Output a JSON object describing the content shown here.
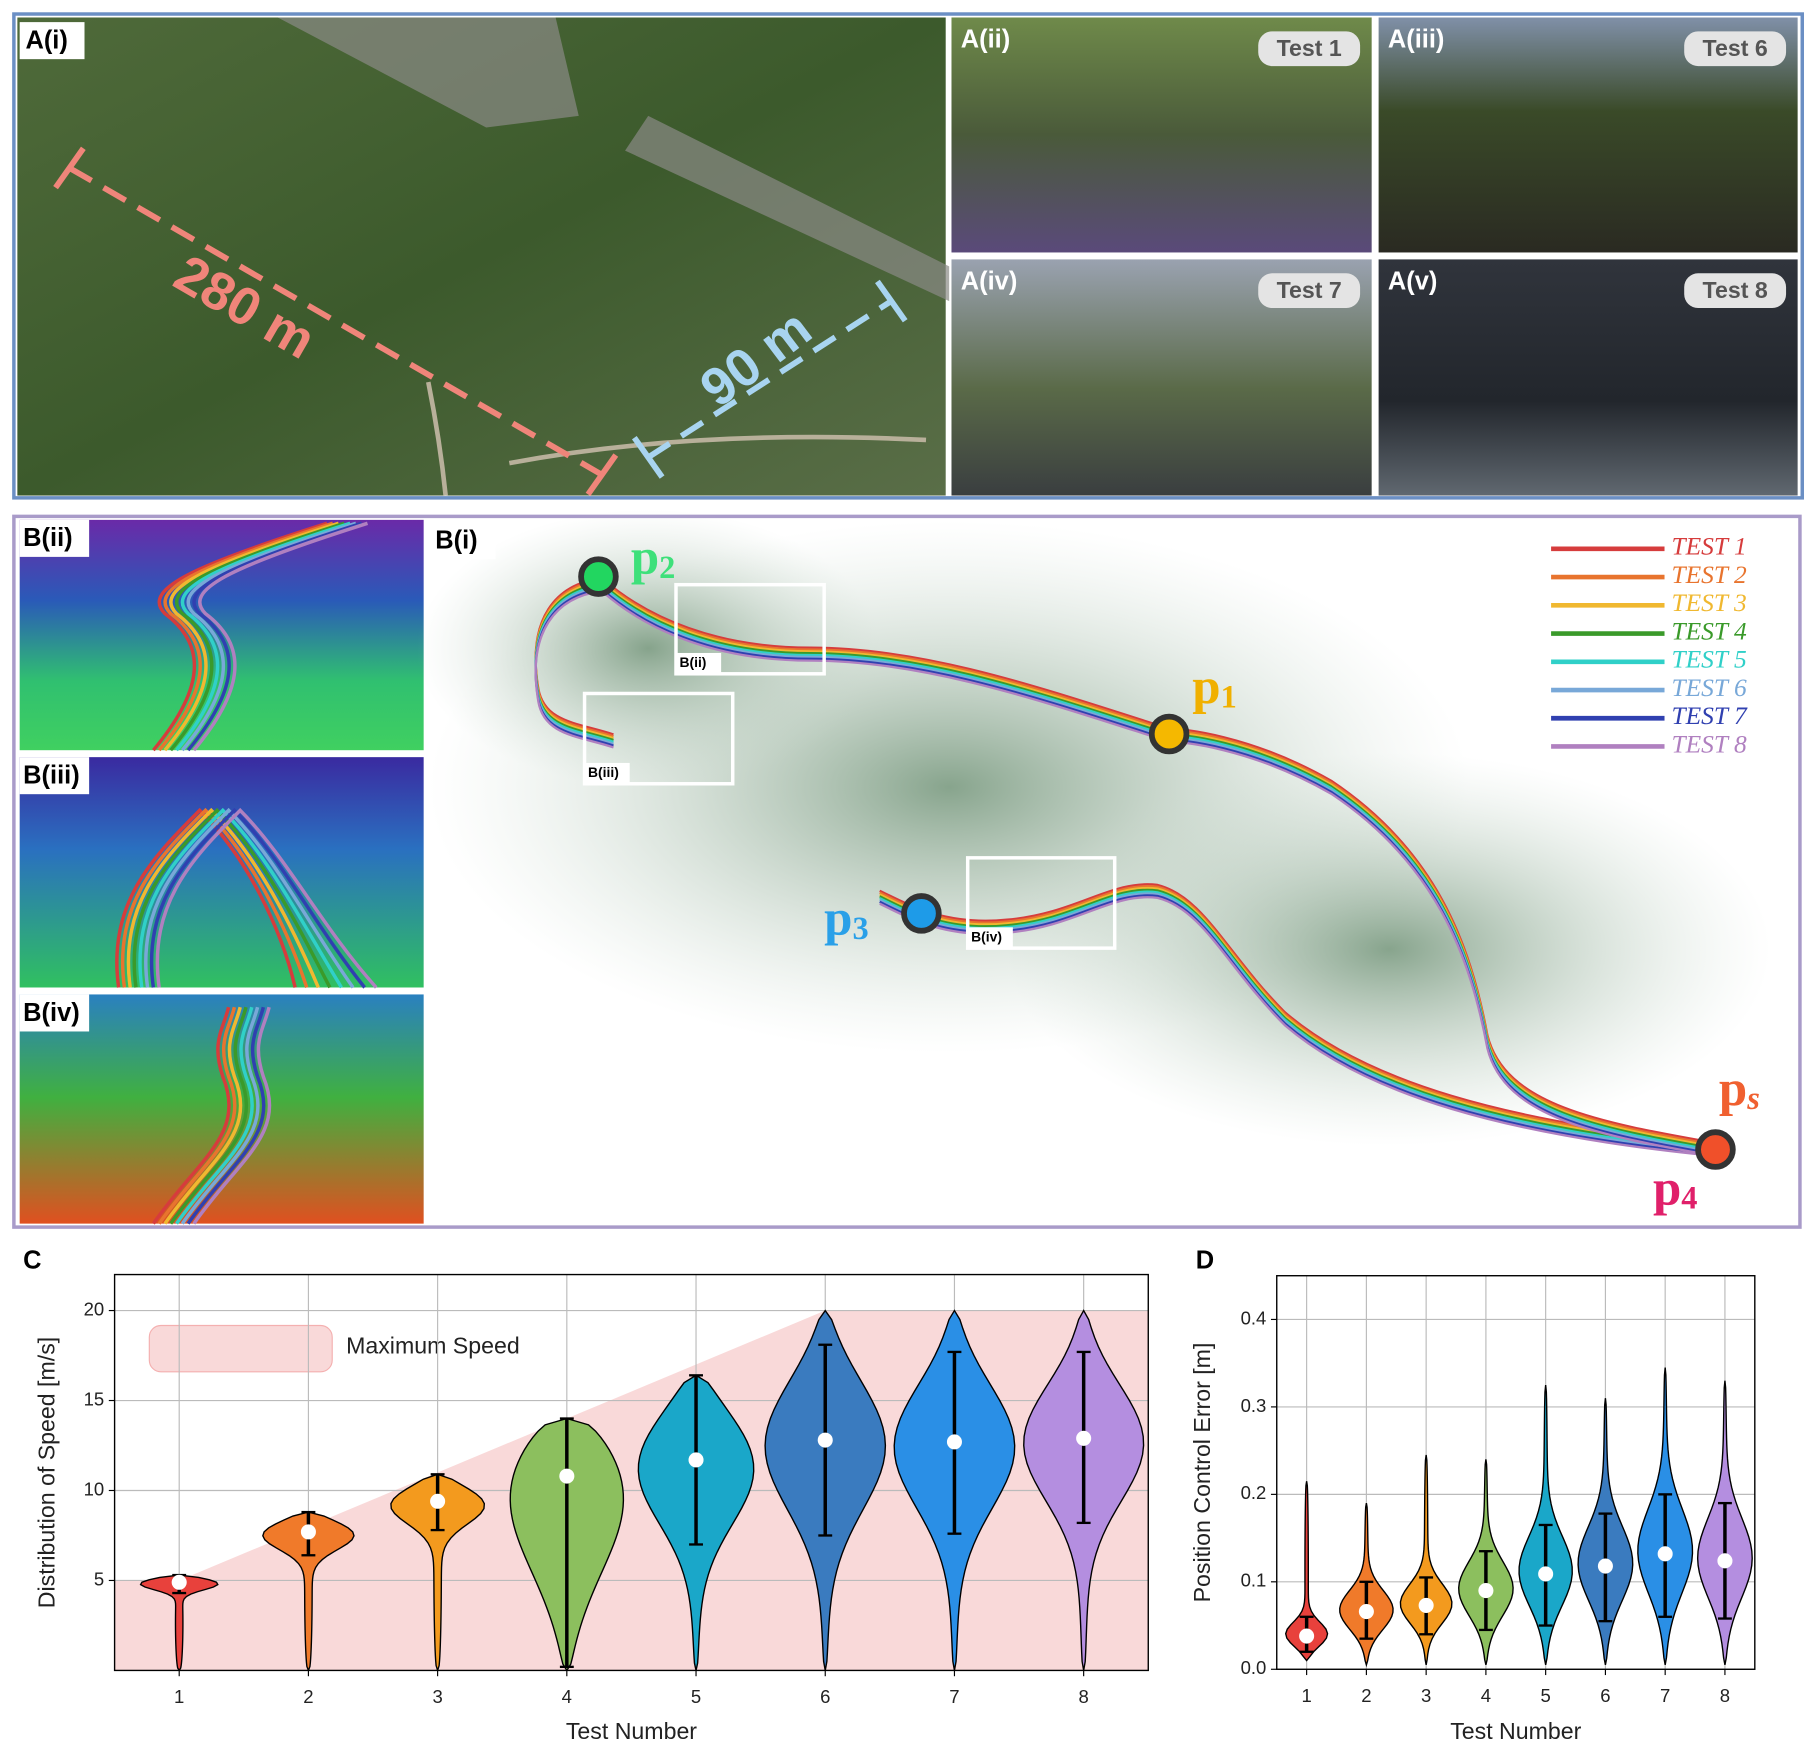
{
  "panel_a": {
    "main": {
      "label": "A(i)",
      "distances": [
        "280 m",
        "90 m"
      ]
    },
    "views": [
      {
        "label": "A(ii)",
        "test": "Test 1"
      },
      {
        "label": "A(iii)",
        "test": "Test 6"
      },
      {
        "label": "A(iv)",
        "test": "Test 7"
      },
      {
        "label": "A(v)",
        "test": "Test 8"
      }
    ]
  },
  "panel_b": {
    "label": "B(i)",
    "insets": [
      "B(ii)",
      "B(iii)",
      "B(iv)"
    ],
    "boxes": [
      "B(ii)",
      "B(iii)",
      "B(iv)"
    ],
    "points": [
      {
        "label": "p",
        "sub": "2",
        "color": "#22d660",
        "text_color": "#3ee07a"
      },
      {
        "label": "p",
        "sub": "1",
        "color": "#f5b800",
        "text_color": "#f0b000"
      },
      {
        "label": "p",
        "sub": "3",
        "color": "#1e9be8",
        "text_color": "#2aa0e8"
      },
      {
        "label": "p",
        "sub": "s",
        "color": "#f0502a",
        "text_color": "#f06030"
      },
      {
        "label": "p",
        "sub": "4",
        "color": "#f0502a",
        "text_color": "#e0206a"
      }
    ],
    "legend": [
      {
        "name": "TEST 1",
        "color": "#d63c3c"
      },
      {
        "name": "TEST 2",
        "color": "#e8742e"
      },
      {
        "name": "TEST 3",
        "color": "#f0b830"
      },
      {
        "name": "TEST 4",
        "color": "#3a9a2a"
      },
      {
        "name": "TEST 5",
        "color": "#30d0c8"
      },
      {
        "name": "TEST 6",
        "color": "#78a8d8"
      },
      {
        "name": "TEST 7",
        "color": "#3040b0"
      },
      {
        "name": "TEST 8",
        "color": "#b080c0"
      }
    ]
  },
  "chart_data": [
    {
      "type": "violin",
      "panel_label": "C",
      "xlabel": "Test Number",
      "ylabel": "Distribution of Speed [m/s]",
      "categories": [
        "1",
        "2",
        "3",
        "4",
        "5",
        "6",
        "7",
        "8"
      ],
      "series": [
        {
          "name": "Maximum Speed",
          "color": "#f9d9d9",
          "values": [
            5,
            8,
            11,
            14,
            17,
            20,
            20,
            20
          ]
        }
      ],
      "colors": [
        "#e8413c",
        "#f07a2a",
        "#f39a1e",
        "#8cbf5e",
        "#1aa7c9",
        "#3a7bbf",
        "#2a8fe6",
        "#b48ee0"
      ],
      "mins": [
        0,
        0,
        0,
        0,
        0,
        0,
        0,
        0
      ],
      "maxs": [
        5.3,
        8.8,
        10.9,
        14,
        16.4,
        20,
        20,
        20
      ],
      "lower": [
        4.3,
        6.4,
        7.8,
        0.2,
        7,
        7.5,
        7.6,
        8.2
      ],
      "upper": [
        5.3,
        8.8,
        10.9,
        14,
        16.4,
        18.1,
        17.7,
        17.7
      ],
      "medians": [
        4.9,
        7.7,
        9.4,
        10.8,
        11.7,
        12.8,
        12.7,
        12.9
      ],
      "ylim": [
        0,
        22
      ],
      "yticks": [
        5,
        10,
        15,
        20
      ],
      "grid": true
    },
    {
      "type": "violin",
      "panel_label": "D",
      "xlabel": "Test Number",
      "ylabel": "Position Control Error [m]",
      "categories": [
        "1",
        "2",
        "3",
        "4",
        "5",
        "6",
        "7",
        "8"
      ],
      "colors": [
        "#e8413c",
        "#f07a2a",
        "#f39a1e",
        "#8cbf5e",
        "#1aa7c9",
        "#3a7bbf",
        "#2a8fe6",
        "#b48ee0"
      ],
      "mins": [
        0.01,
        0.005,
        0.005,
        0.005,
        0.005,
        0.005,
        0.005,
        0.005
      ],
      "maxs": [
        0.215,
        0.19,
        0.245,
        0.24,
        0.325,
        0.31,
        0.345,
        0.33
      ],
      "lower": [
        0.02,
        0.035,
        0.04,
        0.045,
        0.05,
        0.055,
        0.06,
        0.058
      ],
      "upper": [
        0.06,
        0.1,
        0.105,
        0.135,
        0.165,
        0.178,
        0.2,
        0.19
      ],
      "medians": [
        0.038,
        0.066,
        0.073,
        0.09,
        0.109,
        0.118,
        0.132,
        0.124
      ],
      "ylim": [
        0,
        0.45
      ],
      "yticks": [
        {
          "value": 0,
          "label": "0.0"
        },
        0.1,
        0.2,
        0.3,
        0.4
      ],
      "grid": true
    }
  ]
}
